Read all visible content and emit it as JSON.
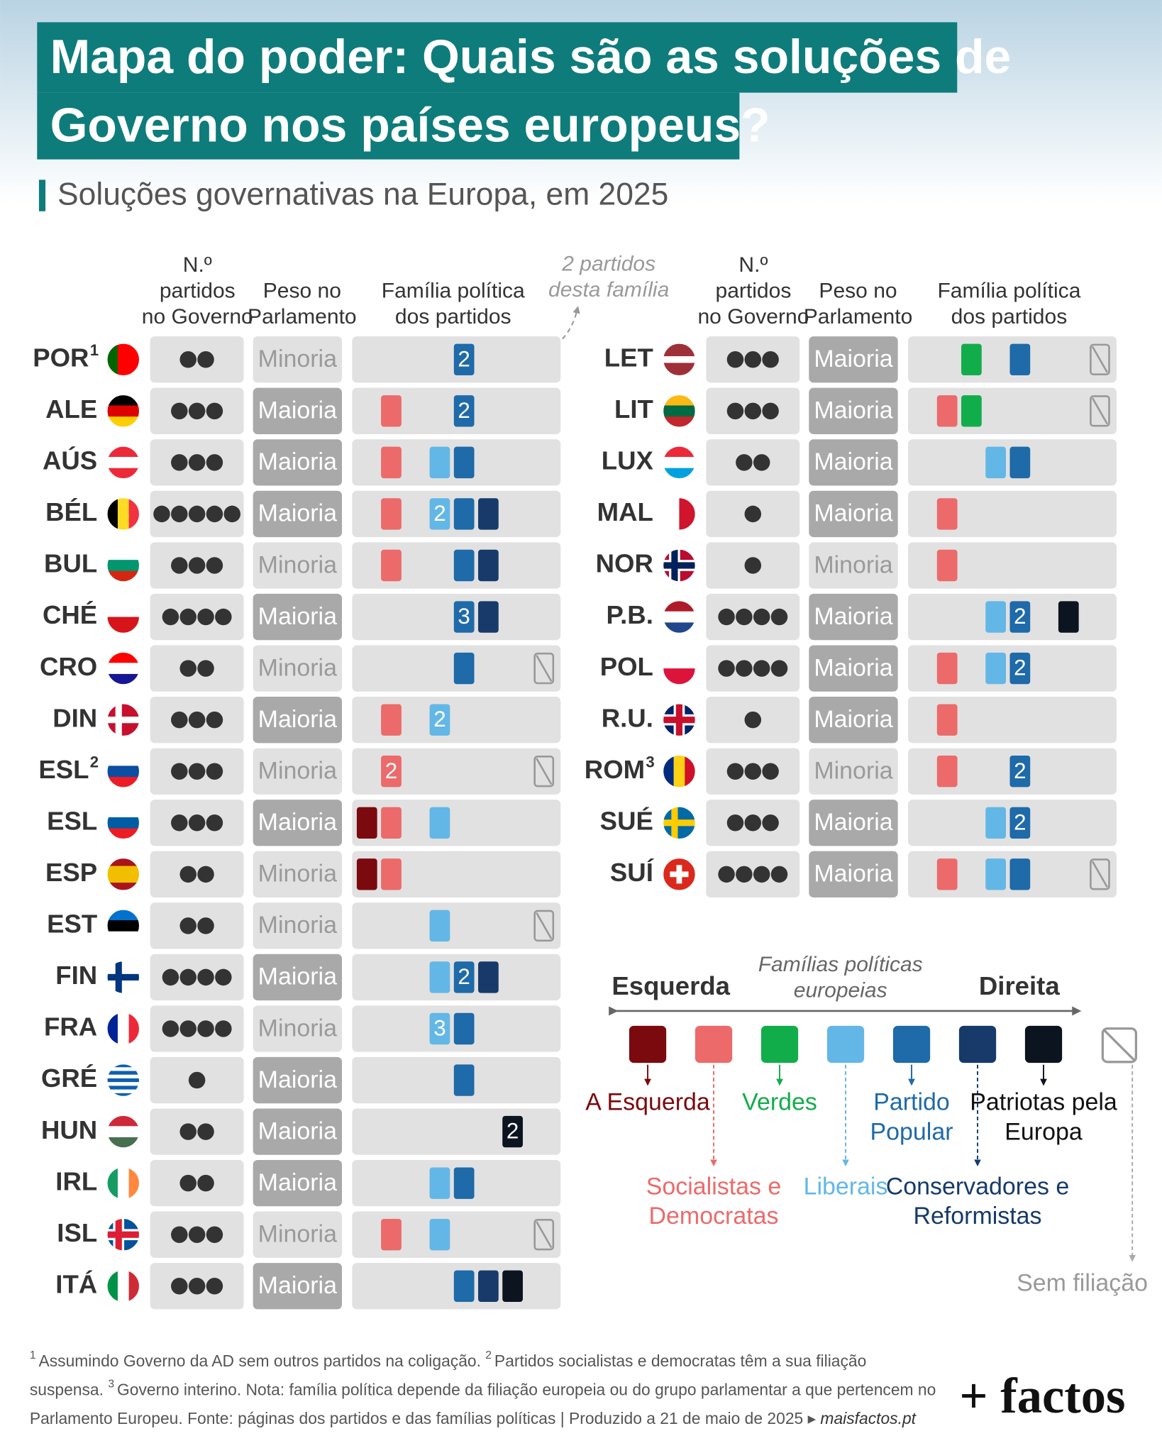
{
  "header": {
    "title": [
      "Mapa do poder: Quais são as soluções de",
      "Governo nos países europeus?"
    ],
    "subtitle": "Soluções governativas na Europa, em 2025"
  },
  "columns": [
    [
      "N.º",
      "partidos",
      "no Governo"
    ],
    [
      "Peso no",
      "Parlamento"
    ],
    [
      "Família política",
      "dos partidos"
    ]
  ],
  "annotation": [
    "2 partidos",
    "desta família"
  ],
  "weight_styles": {
    "Maioria": {
      "bg": "#a9a9a9",
      "fg": "#ffffff"
    },
    "Minoria": {
      "bg": "#e1e1e1",
      "fg": "#9a9a9a"
    }
  },
  "tables": [
    [
      {
        "code": "POR",
        "note": "1",
        "flag": {
          "dir": "v",
          "colors": [
            "#006600",
            "#ff0000",
            "#ff0000"
          ]
        },
        "parties": 2,
        "weight": "Minoria",
        "blocks": [
          {
            "family": 4,
            "label": "2"
          }
        ]
      },
      {
        "code": "ALE",
        "flag": {
          "dir": "h",
          "colors": [
            "#000000",
            "#dd0000",
            "#ffce00"
          ]
        },
        "parties": 3,
        "weight": "Maioria",
        "blocks": [
          {
            "family": 1
          },
          {
            "family": 4,
            "label": "2"
          }
        ]
      },
      {
        "code": "AÚS",
        "flag": {
          "dir": "h",
          "colors": [
            "#ed2939",
            "#ffffff",
            "#ed2939"
          ]
        },
        "parties": 3,
        "weight": "Maioria",
        "blocks": [
          {
            "family": 1
          },
          {
            "family": 3
          },
          {
            "family": 4
          }
        ]
      },
      {
        "code": "BÉL",
        "flag": {
          "dir": "v",
          "colors": [
            "#000000",
            "#fdda24",
            "#ef3340"
          ]
        },
        "parties": 5,
        "weight": "Maioria",
        "blocks": [
          {
            "family": 1
          },
          {
            "family": 3,
            "label": "2"
          },
          {
            "family": 4
          },
          {
            "family": 5
          }
        ]
      },
      {
        "code": "BUL",
        "flag": {
          "dir": "h",
          "colors": [
            "#ffffff",
            "#00966e",
            "#d62612"
          ]
        },
        "parties": 3,
        "weight": "Minoria",
        "blocks": [
          {
            "family": 1
          },
          {
            "family": 4
          },
          {
            "family": 5
          }
        ]
      },
      {
        "code": "CHÉ",
        "flag": {
          "dir": "h",
          "colors": [
            "#ffffff",
            "#d7141a"
          ]
        },
        "parties": 4,
        "weight": "Maioria",
        "blocks": [
          {
            "family": 4,
            "label": "3"
          },
          {
            "family": 5
          }
        ]
      },
      {
        "code": "CRO",
        "flag": {
          "dir": "h",
          "colors": [
            "#ff0000",
            "#ffffff",
            "#171796"
          ]
        },
        "parties": 2,
        "weight": "Minoria",
        "blocks": [
          {
            "family": 4
          }
        ],
        "unaffiliated": true
      },
      {
        "code": "DIN",
        "flag": {
          "dir": "cross",
          "colors": [
            "#c8102e",
            "#ffffff"
          ]
        },
        "parties": 3,
        "weight": "Maioria",
        "blocks": [
          {
            "family": 1
          },
          {
            "family": 3,
            "label": "2"
          }
        ]
      },
      {
        "code": "ESL",
        "note": "2",
        "flag": {
          "dir": "h",
          "colors": [
            "#ffffff",
            "#0b4ea2",
            "#ee1c25"
          ]
        },
        "parties": 3,
        "weight": "Minoria",
        "blocks": [
          {
            "family": 1,
            "label": "2"
          }
        ],
        "unaffiliated": true
      },
      {
        "code": "ESL",
        "flag": {
          "dir": "h",
          "colors": [
            "#ffffff",
            "#005da4",
            "#ed1c24"
          ]
        },
        "parties": 3,
        "weight": "Maioria",
        "blocks": [
          {
            "family": 0
          },
          {
            "family": 1
          },
          {
            "family": 3
          }
        ]
      },
      {
        "code": "ESP",
        "flag": {
          "dir": "h",
          "colors": [
            "#aa151b",
            "#f1bf00",
            "#f1bf00",
            "#aa151b"
          ]
        },
        "parties": 2,
        "weight": "Minoria",
        "blocks": [
          {
            "family": 0
          },
          {
            "family": 1
          }
        ]
      },
      {
        "code": "EST",
        "flag": {
          "dir": "h",
          "colors": [
            "#0072ce",
            "#000000",
            "#ffffff"
          ]
        },
        "parties": 2,
        "weight": "Minoria",
        "blocks": [
          {
            "family": 3
          }
        ],
        "unaffiliated": true
      },
      {
        "code": "FIN",
        "flag": {
          "dir": "cross",
          "colors": [
            "#ffffff",
            "#003580"
          ]
        },
        "parties": 4,
        "weight": "Maioria",
        "blocks": [
          {
            "family": 3
          },
          {
            "family": 4,
            "label": "2"
          },
          {
            "family": 5
          }
        ]
      },
      {
        "code": "FRA",
        "flag": {
          "dir": "v",
          "colors": [
            "#002395",
            "#ffffff",
            "#ed2939"
          ]
        },
        "parties": 4,
        "weight": "Minoria",
        "blocks": [
          {
            "family": 3,
            "label": "3"
          },
          {
            "family": 4
          }
        ]
      },
      {
        "code": "GRÉ",
        "flag": {
          "dir": "h",
          "colors": [
            "#0d5eaf",
            "#ffffff",
            "#0d5eaf",
            "#ffffff",
            "#0d5eaf",
            "#ffffff",
            "#0d5eaf",
            "#ffffff",
            "#0d5eaf"
          ]
        },
        "parties": 1,
        "weight": "Maioria",
        "blocks": [
          {
            "family": 4
          }
        ]
      },
      {
        "code": "HUN",
        "flag": {
          "dir": "h",
          "colors": [
            "#ce2939",
            "#ffffff",
            "#477050"
          ]
        },
        "parties": 2,
        "weight": "Maioria",
        "blocks": [
          {
            "family": 6,
            "label": "2"
          }
        ]
      },
      {
        "code": "IRL",
        "flag": {
          "dir": "v",
          "colors": [
            "#169b62",
            "#ffffff",
            "#ff883e"
          ]
        },
        "parties": 2,
        "weight": "Maioria",
        "blocks": [
          {
            "family": 3
          },
          {
            "family": 4
          }
        ]
      },
      {
        "code": "ISL",
        "flag": {
          "dir": "cross",
          "colors": [
            "#02529c",
            "#dc1e35",
            "#ffffff"
          ]
        },
        "parties": 3,
        "weight": "Minoria",
        "blocks": [
          {
            "family": 1
          },
          {
            "family": 3
          }
        ],
        "unaffiliated": true
      },
      {
        "code": "ITÁ",
        "flag": {
          "dir": "v",
          "colors": [
            "#009246",
            "#ffffff",
            "#ce2b37"
          ]
        },
        "parties": 3,
        "weight": "Maioria",
        "blocks": [
          {
            "family": 4
          },
          {
            "family": 5
          },
          {
            "family": 6
          }
        ]
      }
    ],
    [
      {
        "code": "LET",
        "flag": {
          "dir": "h",
          "colors": [
            "#9e3039",
            "#9e3039",
            "#ffffff",
            "#9e3039",
            "#9e3039"
          ]
        },
        "parties": 3,
        "weight": "Maioria",
        "blocks": [
          {
            "family": 2
          },
          {
            "family": 4
          }
        ],
        "unaffiliated": true
      },
      {
        "code": "LIT",
        "flag": {
          "dir": "h",
          "colors": [
            "#fdb913",
            "#006a44",
            "#c1272d"
          ]
        },
        "parties": 3,
        "weight": "Maioria",
        "blocks": [
          {
            "family": 1
          },
          {
            "family": 2
          }
        ],
        "unaffiliated": true
      },
      {
        "code": "LUX",
        "flag": {
          "dir": "h",
          "colors": [
            "#ed2939",
            "#ffffff",
            "#00a1de"
          ]
        },
        "parties": 2,
        "weight": "Maioria",
        "blocks": [
          {
            "family": 3
          },
          {
            "family": 4
          }
        ]
      },
      {
        "code": "MAL",
        "flag": {
          "dir": "v",
          "colors": [
            "#ffffff",
            "#cf142b"
          ]
        },
        "parties": 1,
        "weight": "Maioria",
        "blocks": [
          {
            "family": 1
          }
        ]
      },
      {
        "code": "NOR",
        "flag": {
          "dir": "cross",
          "colors": [
            "#ba0c2f",
            "#00205b",
            "#ffffff"
          ]
        },
        "parties": 1,
        "weight": "Minoria",
        "blocks": [
          {
            "family": 1
          }
        ]
      },
      {
        "code": "P.B.",
        "flag": {
          "dir": "h",
          "colors": [
            "#ae1c28",
            "#ffffff",
            "#21468b"
          ]
        },
        "parties": 4,
        "weight": "Maioria",
        "blocks": [
          {
            "family": 3
          },
          {
            "family": 4,
            "label": "2"
          },
          {
            "family": 6
          }
        ]
      },
      {
        "code": "POL",
        "flag": {
          "dir": "h",
          "colors": [
            "#ffffff",
            "#dc143c"
          ]
        },
        "parties": 4,
        "weight": "Maioria",
        "blocks": [
          {
            "family": 1
          },
          {
            "family": 3
          },
          {
            "family": 4,
            "label": "2"
          }
        ]
      },
      {
        "code": "R.U.",
        "flag": {
          "dir": "plus",
          "colors": [
            "#012169",
            "#c8102e",
            "#ffffff"
          ]
        },
        "parties": 1,
        "weight": "Maioria",
        "blocks": [
          {
            "family": 1
          }
        ]
      },
      {
        "code": "ROM",
        "note": "3",
        "flag": {
          "dir": "v",
          "colors": [
            "#002b7f",
            "#fcd116",
            "#ce1126"
          ]
        },
        "parties": 3,
        "weight": "Minoria",
        "blocks": [
          {
            "family": 1
          },
          {
            "family": 4,
            "label": "2"
          }
        ]
      },
      {
        "code": "SUÉ",
        "flag": {
          "dir": "cross",
          "colors": [
            "#006aa7",
            "#fecc00"
          ]
        },
        "parties": 3,
        "weight": "Maioria",
        "blocks": [
          {
            "family": 3
          },
          {
            "family": 4,
            "label": "2"
          }
        ]
      },
      {
        "code": "SUÍ",
        "flag": {
          "dir": "plus",
          "colors": [
            "#da291c",
            "#ffffff"
          ]
        },
        "parties": 4,
        "weight": "Maioria",
        "blocks": [
          {
            "family": 1
          },
          {
            "family": 3
          },
          {
            "family": 4
          }
        ],
        "unaffiliated": true
      }
    ]
  ],
  "legend": {
    "title": [
      "Famílias políticas",
      "europeias"
    ],
    "left": "Esquerda",
    "right": "Direita",
    "families": [
      {
        "name": [
          "A Esquerda"
        ],
        "color": "#7b0a0e"
      },
      {
        "name": [
          "Socialistas e",
          "Democratas"
        ],
        "color": "#ec6a6a"
      },
      {
        "name": [
          "Verdes"
        ],
        "color": "#12ad4b"
      },
      {
        "name": [
          "Liberais"
        ],
        "color": "#63b7e6"
      },
      {
        "name": [
          "Partido",
          "Popular"
        ],
        "color": "#1f6aa8"
      },
      {
        "name": [
          "Conservadores e",
          "Reformistas"
        ],
        "color": "#173a6a"
      },
      {
        "name": [
          "Patriotas pela",
          "Europa"
        ],
        "color": "#0c1420"
      }
    ],
    "unaffiliated": "Sem filiação"
  },
  "footer": [
    [
      {
        "sup": "1"
      },
      {
        "text": "Assumindo Governo da AD sem outros partidos na coligação. "
      },
      {
        "sup": "2"
      },
      {
        "text": "Partidos socialistas e democratas têm a sua filiação"
      }
    ],
    [
      {
        "text": "suspensa. "
      },
      {
        "sup": "3"
      },
      {
        "text": "Governo interino. Nota: família política depende da filiação europeia ou do grupo parlamentar a que pertencem no"
      }
    ],
    [
      {
        "text": "Parlamento Europeu. Fonte: páginas dos partidos e das famílias políticas | Produzido a 21 de maio de 2025 ▸ "
      },
      {
        "italic": "maisfactos.pt"
      }
    ]
  ],
  "logo": "+ factos"
}
